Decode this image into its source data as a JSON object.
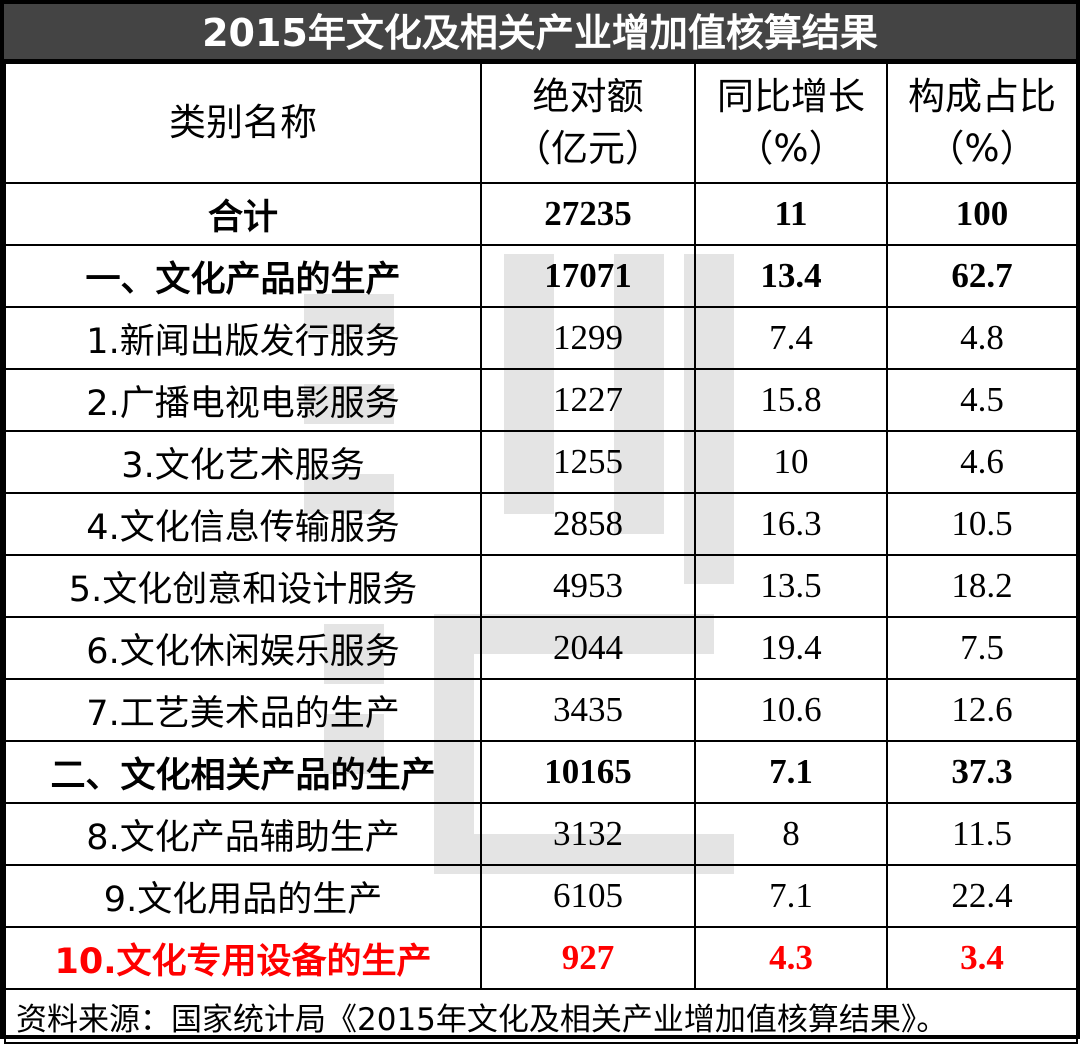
{
  "title": "2015年文化及相关产业增加值核算结果",
  "headers": {
    "category": "类别名称",
    "absolute_line1": "绝对额",
    "absolute_line2": "（亿元）",
    "growth_line1": "同比增长",
    "growth_line2": "（%）",
    "share_line1": "构成占比",
    "share_line2": "（%）"
  },
  "rows": [
    {
      "name": "合计",
      "absolute": "27235",
      "growth": "11",
      "share": "100"
    },
    {
      "name": "一、文化产品的生产",
      "absolute": "17071",
      "growth": "13.4",
      "share": "62.7"
    },
    {
      "name": "1.新闻出版发行服务",
      "absolute": "1299",
      "growth": "7.4",
      "share": "4.8"
    },
    {
      "name": "2.广播电视电影服务",
      "absolute": "1227",
      "growth": "15.8",
      "share": "4.5"
    },
    {
      "name": "3.文化艺术服务",
      "absolute": "1255",
      "growth": "10",
      "share": "4.6"
    },
    {
      "name": "4.文化信息传输服务",
      "absolute": "2858",
      "growth": "16.3",
      "share": "10.5"
    },
    {
      "name": "5.文化创意和设计服务",
      "absolute": "4953",
      "growth": "13.5",
      "share": "18.2"
    },
    {
      "name": "6.文化休闲娱乐服务",
      "absolute": "2044",
      "growth": "19.4",
      "share": "7.5"
    },
    {
      "name": "7.工艺美术品的生产",
      "absolute": "3435",
      "growth": "10.6",
      "share": "12.6"
    },
    {
      "name": "二、文化相关产品的生产",
      "absolute": "10165",
      "growth": "7.1",
      "share": "37.3"
    },
    {
      "name": "8.文化产品辅助生产",
      "absolute": "3132",
      "growth": "8",
      "share": "11.5"
    },
    {
      "name": "9.文化用品的生产",
      "absolute": "6105",
      "growth": "7.1",
      "share": "22.4"
    },
    {
      "name": "10.文化专用设备的生产",
      "absolute": "927",
      "growth": "4.3",
      "share": "3.4"
    }
  ],
  "source": "资料来源：国家统计局《2015年文化及相关产业增加值核算结果》。",
  "colors": {
    "title_bg": "#444444",
    "highlight": "#ff0000"
  }
}
